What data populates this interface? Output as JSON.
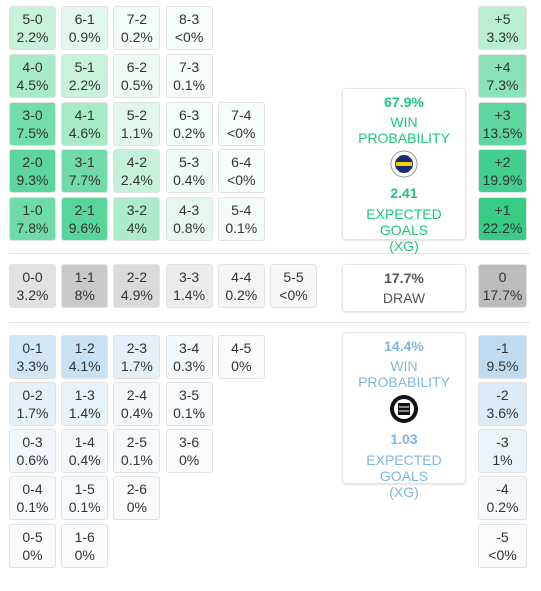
{
  "home": {
    "rows": [
      [
        {
          "score": "5-0",
          "pct": "2.2%",
          "color": "#c9f2dd"
        },
        {
          "score": "6-1",
          "pct": "0.9%",
          "color": "#e3f8ec"
        },
        {
          "score": "7-2",
          "pct": "0.2%",
          "color": "#f3fcf7"
        },
        {
          "score": "8-3",
          "pct": "<0%",
          "color": "#f7fdf9"
        }
      ],
      [
        {
          "score": "4-0",
          "pct": "4.5%",
          "color": "#a8ebca"
        },
        {
          "score": "5-1",
          "pct": "2.2%",
          "color": "#c9f2dd"
        },
        {
          "score": "6-2",
          "pct": "0.5%",
          "color": "#ecfaf2"
        },
        {
          "score": "7-3",
          "pct": "0.1%",
          "color": "#f5fcf8"
        }
      ],
      [
        {
          "score": "3-0",
          "pct": "7.5%",
          "color": "#72dcab"
        },
        {
          "score": "4-1",
          "pct": "4.6%",
          "color": "#a6eac8"
        },
        {
          "score": "5-2",
          "pct": "1.1%",
          "color": "#e0f7ea"
        },
        {
          "score": "6-3",
          "pct": "0.2%",
          "color": "#f3fcf7"
        },
        {
          "score": "7-4",
          "pct": "<0%",
          "color": "#f7fdf9"
        }
      ],
      [
        {
          "score": "2-0",
          "pct": "9.3%",
          "color": "#5cd69d"
        },
        {
          "score": "3-1",
          "pct": "7.7%",
          "color": "#70dba9"
        },
        {
          "score": "4-2",
          "pct": "2.4%",
          "color": "#c5f1da"
        },
        {
          "score": "5-3",
          "pct": "0.4%",
          "color": "#eefaf3"
        },
        {
          "score": "6-4",
          "pct": "<0%",
          "color": "#f7fdf9"
        }
      ],
      [
        {
          "score": "1-0",
          "pct": "7.8%",
          "color": "#6fdba8"
        },
        {
          "score": "2-1",
          "pct": "9.6%",
          "color": "#59d59b"
        },
        {
          "score": "3-2",
          "pct": "4%",
          "color": "#ade9cb"
        },
        {
          "score": "4-3",
          "pct": "0.8%",
          "color": "#e6f8ee"
        },
        {
          "score": "5-4",
          "pct": "0.1%",
          "color": "#f5fcf8"
        }
      ]
    ],
    "totals": [
      {
        "score": "+5",
        "pct": "3.3%",
        "color": "#b9eed3"
      },
      {
        "score": "+4",
        "pct": "7.3%",
        "color": "#8ae2b9"
      },
      {
        "score": "+3",
        "pct": "13.5%",
        "color": "#5fd69f"
      },
      {
        "score": "+2",
        "pct": "19.9%",
        "color": "#42cf8d"
      },
      {
        "score": "+1",
        "pct": "22.2%",
        "color": "#36cc86"
      }
    ],
    "panel": {
      "pct": "67.9%",
      "label": "WIN PROBABILITY",
      "xg": "2.41",
      "xg_label": "EXPECTED GOALS",
      "xg_abbr": "(XG)"
    }
  },
  "draw": {
    "cells": [
      {
        "score": "0-0",
        "pct": "3.2%",
        "color": "#e2e2e2"
      },
      {
        "score": "1-1",
        "pct": "8%",
        "color": "#c9c9c9"
      },
      {
        "score": "2-2",
        "pct": "4.9%",
        "color": "#dadada"
      },
      {
        "score": "3-3",
        "pct": "1.4%",
        "color": "#ececec"
      },
      {
        "score": "4-4",
        "pct": "0.2%",
        "color": "#f4f4f4"
      },
      {
        "score": "5-5",
        "pct": "<0%",
        "color": "#f7f7f7"
      }
    ],
    "total": {
      "score": "0",
      "pct": "17.7%",
      "color": "#bcbcbc"
    },
    "panel": {
      "pct": "17.7%",
      "label": "DRAW"
    }
  },
  "away": {
    "rows": [
      [
        {
          "score": "0-1",
          "pct": "3.3%",
          "color": "#d2e6f6"
        },
        {
          "score": "1-2",
          "pct": "4.1%",
          "color": "#c9e1f4"
        },
        {
          "score": "2-3",
          "pct": "1.7%",
          "color": "#e5f0fa"
        },
        {
          "score": "3-4",
          "pct": "0.3%",
          "color": "#f3f8fc"
        },
        {
          "score": "4-5",
          "pct": "0%",
          "color": "#f9fbfd"
        }
      ],
      [
        {
          "score": "0-2",
          "pct": "1.7%",
          "color": "#e5f0fa"
        },
        {
          "score": "1-3",
          "pct": "1.4%",
          "color": "#e8f2fa"
        },
        {
          "score": "2-4",
          "pct": "0.4%",
          "color": "#f2f7fc"
        },
        {
          "score": "3-5",
          "pct": "0.1%",
          "color": "#f7fafd"
        }
      ],
      [
        {
          "score": "0-3",
          "pct": "0.6%",
          "color": "#f0f6fb"
        },
        {
          "score": "1-4",
          "pct": "0.4%",
          "color": "#f2f7fc"
        },
        {
          "score": "2-5",
          "pct": "0.1%",
          "color": "#f7fafd"
        },
        {
          "score": "3-6",
          "pct": "0%",
          "color": "#f9fbfd"
        }
      ],
      [
        {
          "score": "0-4",
          "pct": "0.1%",
          "color": "#f7fafd"
        },
        {
          "score": "1-5",
          "pct": "0.1%",
          "color": "#f7fafd"
        },
        {
          "score": "2-6",
          "pct": "0%",
          "color": "#f9fbfd"
        }
      ],
      [
        {
          "score": "0-5",
          "pct": "0%",
          "color": "#f9fbfd"
        },
        {
          "score": "1-6",
          "pct": "0%",
          "color": "#f9fbfd"
        }
      ]
    ],
    "totals": [
      {
        "score": "-1",
        "pct": "9.5%",
        "color": "#bedbf2"
      },
      {
        "score": "-2",
        "pct": "3.6%",
        "color": "#dcebf8"
      },
      {
        "score": "-3",
        "pct": "1%",
        "color": "#eaf3fb"
      },
      {
        "score": "-4",
        "pct": "0.2%",
        "color": "#f5f9fd"
      },
      {
        "score": "-5",
        "pct": "<0%",
        "color": "#f9fbfd"
      }
    ],
    "panel": {
      "pct": "14.4%",
      "label": "WIN PROBABILITY",
      "xg": "1.03",
      "xg_label": "EXPECTED GOALS",
      "xg_abbr": "(XG)"
    }
  }
}
